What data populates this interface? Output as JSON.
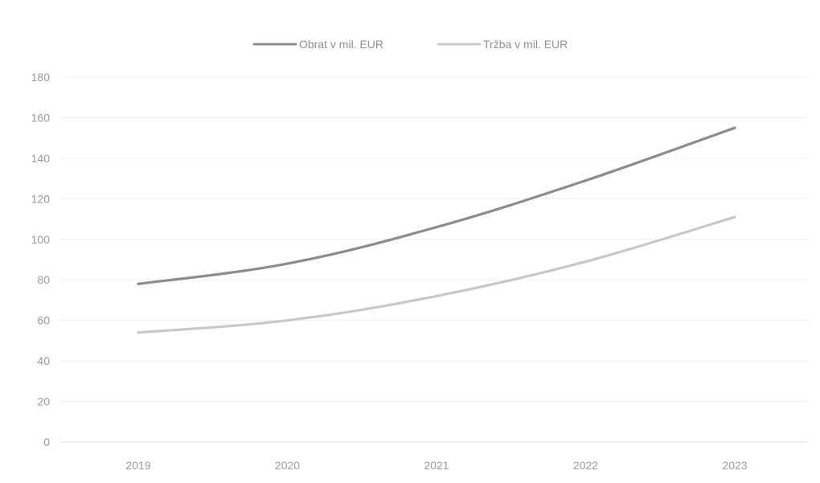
{
  "chart_data": {
    "type": "line",
    "title": "",
    "xlabel": "",
    "ylabel": "",
    "categories": [
      "2019",
      "2020",
      "2021",
      "2022",
      "2023"
    ],
    "ylim": [
      0,
      180
    ],
    "yticks": [
      "0",
      "20",
      "40",
      "60",
      "80",
      "100",
      "120",
      "140",
      "160",
      "180"
    ],
    "grid": true,
    "legend_position": "top-center",
    "series": [
      {
        "name": "Obrat v mil. EUR",
        "color": "#8c8c8c",
        "values": [
          78,
          88,
          106,
          129,
          155
        ]
      },
      {
        "name": "Tržba v mil. EUR",
        "color": "#c8c8c8",
        "values": [
          54,
          60,
          72,
          89,
          111
        ]
      }
    ]
  }
}
